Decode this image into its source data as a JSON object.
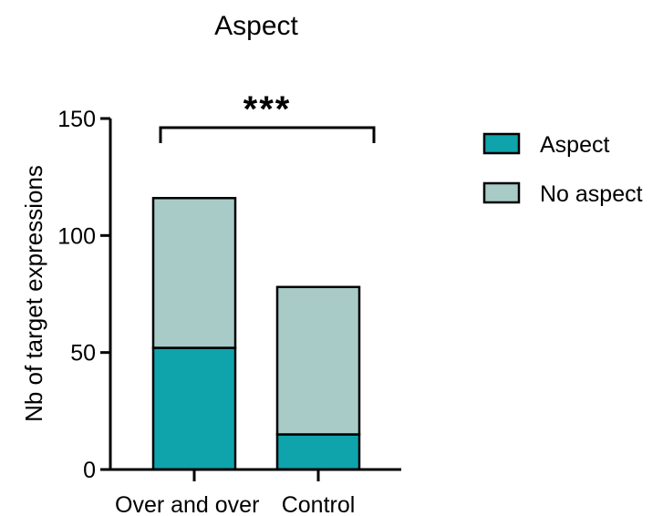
{
  "chart_data": {
    "type": "bar",
    "stacked": true,
    "title": "Aspect",
    "xlabel": "",
    "ylabel": "Nb of target expressions",
    "ylim": [
      0,
      150
    ],
    "yticks": [
      0,
      50,
      100,
      150
    ],
    "categories": [
      "Over and over",
      "Control"
    ],
    "series": [
      {
        "name": "Aspect",
        "values": [
          52,
          15
        ],
        "color": "#0fa3ac"
      },
      {
        "name": "No aspect",
        "values": [
          64,
          63
        ],
        "color": "#a8cbc8"
      }
    ],
    "legend_position": "right",
    "grid": false,
    "annotation": {
      "text": "***",
      "spans": [
        "Over and over",
        "Control"
      ]
    }
  }
}
